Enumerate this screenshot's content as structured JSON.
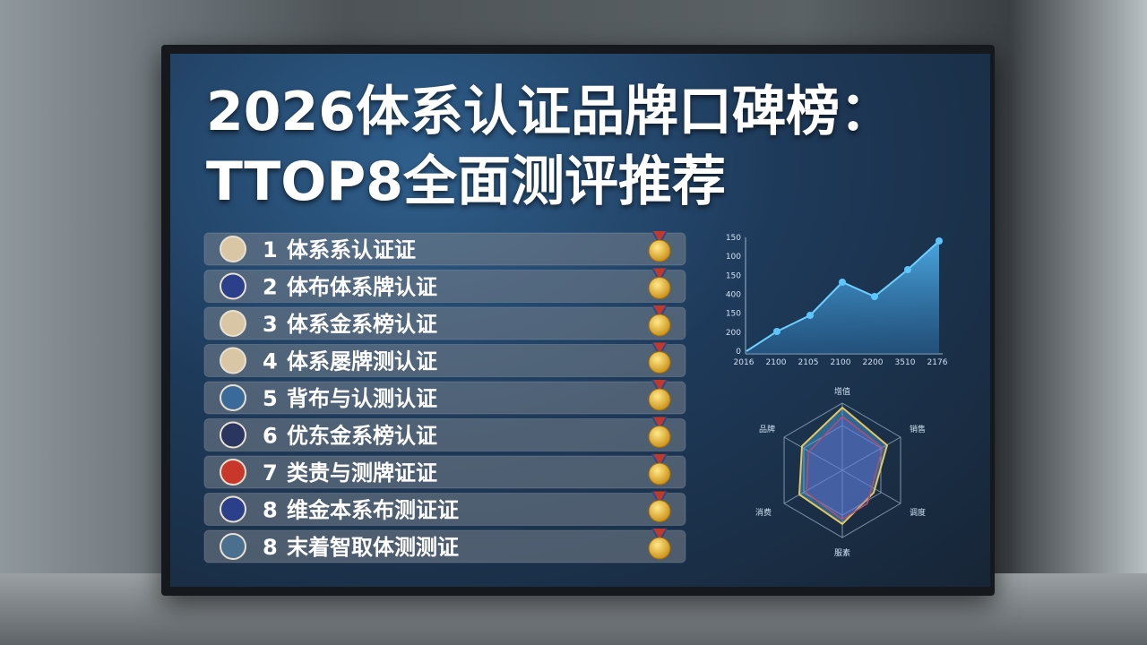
{
  "title": [
    "2026体系认证品牌口碑榜：",
    "TTOP8全面测评推荐"
  ],
  "ranking": [
    {
      "rank": "1",
      "name": "体系系认证证"
    },
    {
      "rank": "2",
      "name": "体布体系牌认证"
    },
    {
      "rank": "3",
      "name": "体系金系榜认证"
    },
    {
      "rank": "4",
      "name": "体系屡牌测认证"
    },
    {
      "rank": "5",
      "name": "背布与认测认证"
    },
    {
      "rank": "6",
      "name": "优东金系榜认证"
    },
    {
      "rank": "7",
      "name": "类贵与测牌证证"
    },
    {
      "rank": "8",
      "name": "维金本系布测证证"
    },
    {
      "rank": "8",
      "name": "末着智取体测测证"
    }
  ],
  "line_chart": {
    "y_labels": [
      "150",
      "100",
      "150",
      "400",
      "150",
      "200",
      "0"
    ],
    "x_labels": [
      "2016",
      "2100",
      "2105",
      "2100",
      "2200",
      "3510",
      "2176"
    ]
  },
  "radar_chart": {
    "labels": [
      "增值",
      "销售",
      "调度",
      "服素",
      "消费",
      "品牌"
    ]
  }
}
